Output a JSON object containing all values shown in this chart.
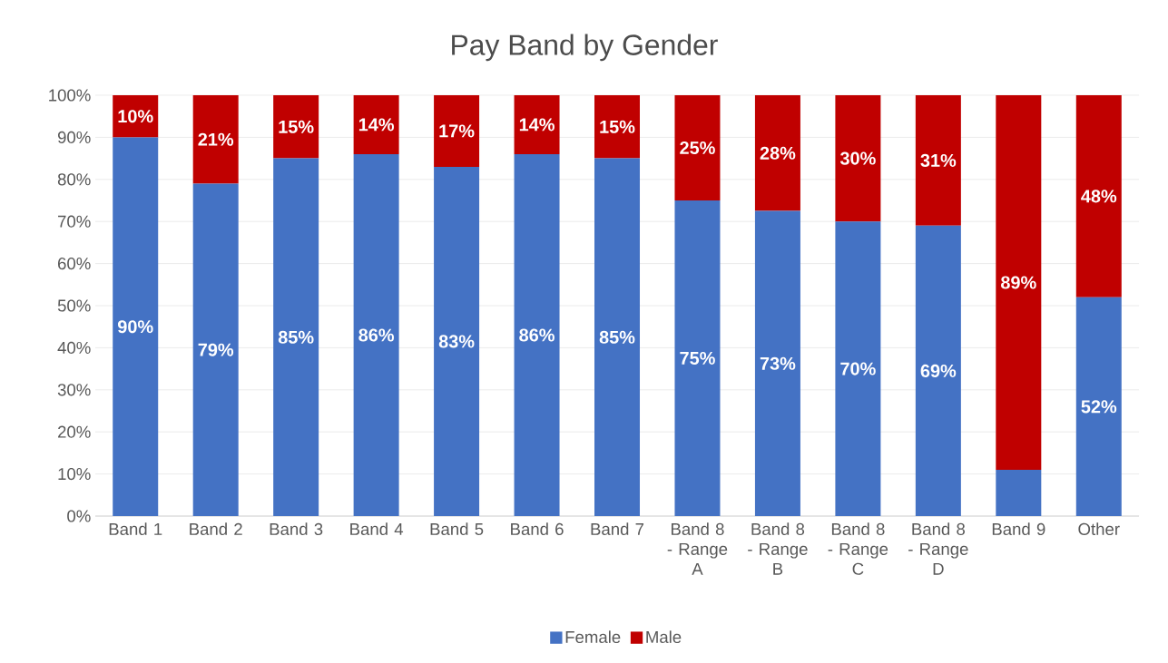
{
  "chart_data": {
    "type": "bar",
    "title": "Pay Band by Gender",
    "stacked": true,
    "categories": [
      "Band 1",
      "Band 2",
      "Band 3",
      "Band 4",
      "Band 5",
      "Band 6",
      "Band 7",
      "Band 8 - Range A",
      "Band 8 - Range B",
      "Band 8 - Range C",
      "Band 8 - Range D",
      "Band 9",
      "Other"
    ],
    "series": [
      {
        "name": "Female",
        "color": "#4472c4",
        "values": [
          90,
          79,
          85,
          86,
          83,
          86,
          85,
          75,
          72.5,
          70,
          69,
          11,
          52
        ],
        "value_labels": [
          "90%",
          "79%",
          "85%",
          "86%",
          "83%",
          "86%",
          "85%",
          "75%",
          "73%",
          "70%",
          "69%",
          null,
          "52%"
        ]
      },
      {
        "name": "Male",
        "color": "#c00000",
        "values": [
          10,
          21,
          15,
          14,
          17,
          14,
          15,
          25,
          27.5,
          30,
          31,
          89,
          48
        ],
        "value_labels": [
          "10%",
          "21%",
          "15%",
          "14%",
          "17%",
          "14%",
          "15%",
          "25%",
          "28%",
          "30%",
          "31%",
          "89%",
          "48%"
        ]
      }
    ],
    "ylim": [
      0,
      100
    ],
    "yticks": [
      {
        "value": 0,
        "label": "0%"
      },
      {
        "value": 10,
        "label": "10%"
      },
      {
        "value": 20,
        "label": "20%"
      },
      {
        "value": 30,
        "label": "30%"
      },
      {
        "value": 40,
        "label": "40%"
      },
      {
        "value": 50,
        "label": "50%"
      },
      {
        "value": 60,
        "label": "60%"
      },
      {
        "value": 70,
        "label": "70%"
      },
      {
        "value": 80,
        "label": "80%"
      },
      {
        "value": 90,
        "label": "90%"
      },
      {
        "value": 100,
        "label": "100%"
      }
    ],
    "grid": "y",
    "legend": "bottom"
  }
}
